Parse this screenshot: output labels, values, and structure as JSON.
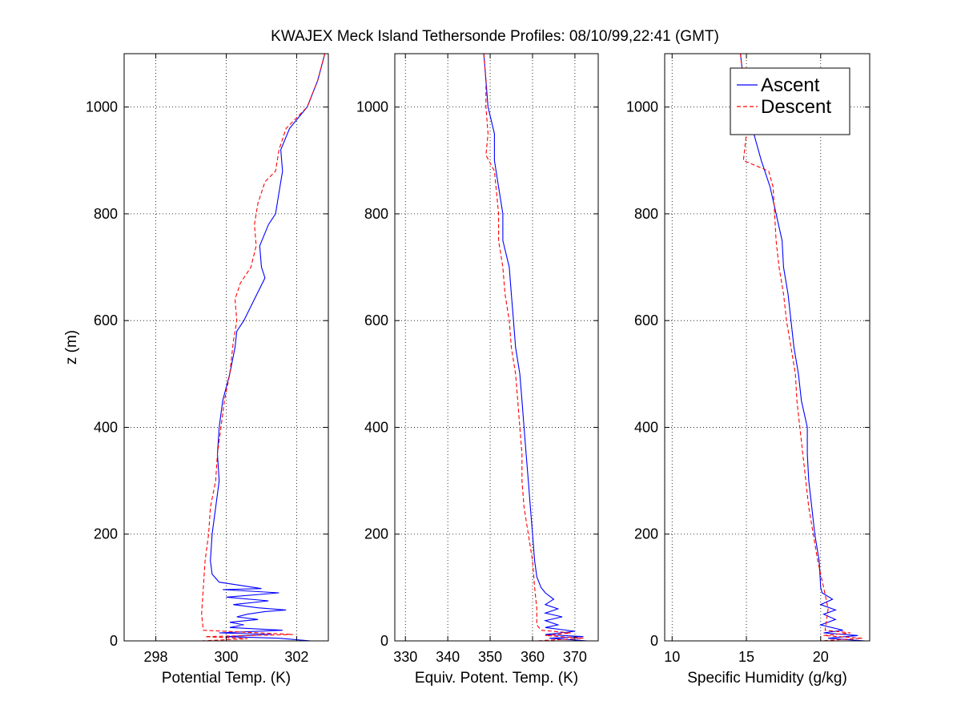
{
  "figure": {
    "title": "KWAJEX Meck Island Tethersonde Profiles: 08/10/99,22:41 (GMT)"
  },
  "chart_data": [
    {
      "type": "line",
      "xlabel": "Potential Temp. (K)",
      "ylabel": "z (m)",
      "xlim": [
        297.1,
        302.9
      ],
      "ylim": [
        0,
        1100
      ],
      "xticks": [
        298,
        300,
        302
      ],
      "yticks": [
        0,
        200,
        400,
        600,
        800,
        1000
      ],
      "grid": true,
      "series": [
        {
          "name": "Ascent",
          "color": "#0000ff",
          "dash": "solid",
          "points": [
            [
              297.2,
              0
            ],
            [
              302.4,
              0
            ],
            [
              301.5,
              5
            ],
            [
              300.0,
              8
            ],
            [
              301.3,
              12
            ],
            [
              299.8,
              15
            ],
            [
              301.6,
              20
            ],
            [
              300.1,
              25
            ],
            [
              300.5,
              30
            ],
            [
              300.1,
              35
            ],
            [
              300.9,
              40
            ],
            [
              300.3,
              45
            ],
            [
              300.6,
              50
            ],
            [
              301.1,
              55
            ],
            [
              301.7,
              58
            ],
            [
              300.9,
              62
            ],
            [
              300.2,
              68
            ],
            [
              301.2,
              75
            ],
            [
              300.0,
              82
            ],
            [
              301.5,
              90
            ],
            [
              299.9,
              96
            ],
            [
              301.0,
              98
            ],
            [
              299.8,
              110
            ],
            [
              299.6,
              125
            ],
            [
              299.55,
              150
            ],
            [
              299.6,
              200
            ],
            [
              299.7,
              250
            ],
            [
              299.8,
              300
            ],
            [
              299.75,
              350
            ],
            [
              299.8,
              400
            ],
            [
              299.9,
              450
            ],
            [
              300.1,
              500
            ],
            [
              300.25,
              550
            ],
            [
              300.3,
              580
            ],
            [
              300.5,
              600
            ],
            [
              300.8,
              640
            ],
            [
              301.1,
              680
            ],
            [
              301.0,
              700
            ],
            [
              300.95,
              740
            ],
            [
              301.2,
              780
            ],
            [
              301.4,
              800
            ],
            [
              301.5,
              840
            ],
            [
              301.6,
              880
            ],
            [
              301.55,
              920
            ],
            [
              301.8,
              960
            ],
            [
              302.3,
              1000
            ],
            [
              302.6,
              1050
            ],
            [
              302.8,
              1100
            ]
          ]
        },
        {
          "name": "Descent",
          "color": "#ff0000",
          "dash": "dashed",
          "points": [
            [
              302.8,
              1100
            ],
            [
              302.6,
              1050
            ],
            [
              302.3,
              1000
            ],
            [
              301.7,
              960
            ],
            [
              301.5,
              920
            ],
            [
              301.4,
              880
            ],
            [
              301.1,
              860
            ],
            [
              300.9,
              820
            ],
            [
              300.8,
              780
            ],
            [
              300.85,
              740
            ],
            [
              300.7,
              700
            ],
            [
              300.4,
              670
            ],
            [
              300.25,
              640
            ],
            [
              300.3,
              600
            ],
            [
              300.2,
              560
            ],
            [
              300.1,
              500
            ],
            [
              299.95,
              450
            ],
            [
              299.85,
              400
            ],
            [
              299.75,
              350
            ],
            [
              299.7,
              300
            ],
            [
              299.55,
              250
            ],
            [
              299.5,
              200
            ],
            [
              299.4,
              150
            ],
            [
              299.35,
              100
            ],
            [
              299.3,
              50
            ],
            [
              299.35,
              20
            ],
            [
              301.9,
              12
            ],
            [
              299.4,
              8
            ],
            [
              300.6,
              4
            ],
            [
              299.3,
              0
            ]
          ]
        }
      ]
    },
    {
      "type": "line",
      "xlabel": "Equiv. Potent. Temp. (K)",
      "ylabel": "",
      "xlim": [
        327.5,
        375.5
      ],
      "ylim": [
        0,
        1100
      ],
      "xticks": [
        330,
        340,
        350,
        360,
        370
      ],
      "yticks": [
        0,
        200,
        400,
        600,
        800,
        1000
      ],
      "grid": true,
      "series": [
        {
          "name": "Ascent",
          "color": "#0000ff",
          "dash": "solid",
          "points": [
            [
              328,
              0
            ],
            [
              373,
              0
            ],
            [
              364,
              5
            ],
            [
              372,
              8
            ],
            [
              363,
              12
            ],
            [
              370,
              18
            ],
            [
              363,
              25
            ],
            [
              366,
              30
            ],
            [
              363,
              38
            ],
            [
              367,
              45
            ],
            [
              363,
              52
            ],
            [
              366,
              60
            ],
            [
              363,
              68
            ],
            [
              365,
              78
            ],
            [
              363,
              90
            ],
            [
              362,
              100
            ],
            [
              361,
              120
            ],
            [
              360.5,
              150
            ],
            [
              360,
              200
            ],
            [
              359.5,
              250
            ],
            [
              359,
              300
            ],
            [
              358.5,
              350
            ],
            [
              358,
              400
            ],
            [
              357.5,
              450
            ],
            [
              357,
              500
            ],
            [
              356,
              550
            ],
            [
              355.5,
              600
            ],
            [
              355,
              650
            ],
            [
              354.5,
              700
            ],
            [
              353,
              750
            ],
            [
              353,
              800
            ],
            [
              352,
              850
            ],
            [
              351,
              900
            ],
            [
              351,
              950
            ],
            [
              349.5,
              1000
            ],
            [
              349,
              1050
            ],
            [
              348.5,
              1100
            ]
          ]
        },
        {
          "name": "Descent",
          "color": "#ff0000",
          "dash": "dashed",
          "points": [
            [
              348.5,
              1100
            ],
            [
              349,
              1050
            ],
            [
              349,
              1000
            ],
            [
              349.5,
              950
            ],
            [
              349,
              910
            ],
            [
              351,
              880
            ],
            [
              351.5,
              840
            ],
            [
              352,
              800
            ],
            [
              352,
              750
            ],
            [
              353,
              700
            ],
            [
              353.5,
              650
            ],
            [
              354.5,
              600
            ],
            [
              355,
              550
            ],
            [
              356,
              500
            ],
            [
              356.5,
              450
            ],
            [
              357,
              400
            ],
            [
              357.5,
              350
            ],
            [
              357.5,
              300
            ],
            [
              358,
              250
            ],
            [
              359,
              200
            ],
            [
              360,
              150
            ],
            [
              360.5,
              100
            ],
            [
              361,
              60
            ],
            [
              361,
              30
            ],
            [
              362,
              20
            ],
            [
              369,
              15
            ],
            [
              363,
              10
            ],
            [
              372,
              5
            ],
            [
              361,
              0
            ]
          ]
        }
      ]
    },
    {
      "type": "line",
      "xlabel": "Specific Humidity (g/kg)",
      "ylabel": "",
      "xlim": [
        9.5,
        23.3
      ],
      "ylim": [
        0,
        1100
      ],
      "xticks": [
        10,
        15,
        20
      ],
      "yticks": [
        0,
        200,
        400,
        600,
        800,
        1000
      ],
      "grid": true,
      "series": [
        {
          "name": "Ascent",
          "color": "#0000ff",
          "dash": "solid",
          "points": [
            [
              11,
              0
            ],
            [
              23,
              0
            ],
            [
              20.5,
              5
            ],
            [
              22.5,
              10
            ],
            [
              20.2,
              15
            ],
            [
              21.5,
              20
            ],
            [
              20,
              30
            ],
            [
              21,
              40
            ],
            [
              20.2,
              50
            ],
            [
              21,
              58
            ],
            [
              20,
              68
            ],
            [
              20.8,
              78
            ],
            [
              20.1,
              90
            ],
            [
              20,
              100
            ],
            [
              19.9,
              150
            ],
            [
              19.6,
              200
            ],
            [
              19.4,
              250
            ],
            [
              19.2,
              300
            ],
            [
              19.1,
              350
            ],
            [
              19.1,
              400
            ],
            [
              18.7,
              450
            ],
            [
              18.5,
              500
            ],
            [
              18.2,
              550
            ],
            [
              18,
              600
            ],
            [
              17.8,
              650
            ],
            [
              17.5,
              700
            ],
            [
              17.4,
              750
            ],
            [
              17,
              800
            ],
            [
              16.6,
              850
            ],
            [
              16,
              900
            ],
            [
              15.5,
              950
            ],
            [
              15.2,
              1000
            ],
            [
              14.8,
              1050
            ],
            [
              14.6,
              1100
            ]
          ]
        },
        {
          "name": "Descent",
          "color": "#ff0000",
          "dash": "dashed",
          "points": [
            [
              14.6,
              1100
            ],
            [
              14.8,
              1050
            ],
            [
              15,
              1000
            ],
            [
              15,
              950
            ],
            [
              14.8,
              900
            ],
            [
              16.5,
              880
            ],
            [
              16.8,
              850
            ],
            [
              16.9,
              800
            ],
            [
              17,
              750
            ],
            [
              17.2,
              700
            ],
            [
              17.5,
              650
            ],
            [
              17.7,
              600
            ],
            [
              18,
              550
            ],
            [
              18.3,
              500
            ],
            [
              18.4,
              450
            ],
            [
              18.6,
              400
            ],
            [
              18.8,
              350
            ],
            [
              19,
              300
            ],
            [
              19.2,
              250
            ],
            [
              19.5,
              200
            ],
            [
              19.8,
              150
            ],
            [
              20.2,
              100
            ],
            [
              20.5,
              60
            ],
            [
              20.3,
              20
            ],
            [
              22,
              15
            ],
            [
              20.2,
              10
            ],
            [
              22.8,
              5
            ],
            [
              20,
              0
            ]
          ]
        }
      ]
    }
  ],
  "legend": {
    "placement": "top-right",
    "entries": [
      "Ascent",
      "Descent"
    ]
  }
}
